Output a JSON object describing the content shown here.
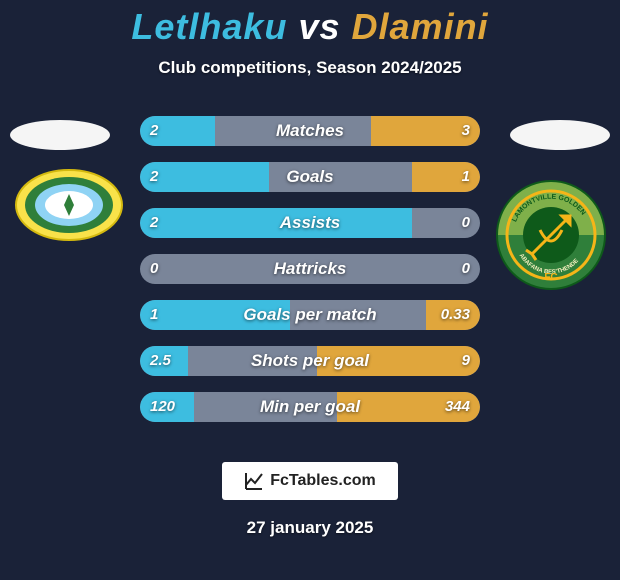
{
  "title": {
    "player1": "Letlhaku",
    "vs": "vs",
    "player2": "Dlamini",
    "color1": "#3dbde0",
    "colorVs": "#ffffff",
    "color2": "#e0a63c"
  },
  "subtitle": "Club competitions, Season 2024/2025",
  "colors": {
    "background": "#1a2238",
    "track": "#7a8599",
    "left": "#3dbde0",
    "right": "#e0a63c"
  },
  "track_width": 340,
  "rows": [
    {
      "label": "Matches",
      "left_val": "2",
      "right_val": "3",
      "left_pct": 22,
      "right_pct": 32
    },
    {
      "label": "Goals",
      "left_val": "2",
      "right_val": "1",
      "left_pct": 38,
      "right_pct": 20
    },
    {
      "label": "Assists",
      "left_val": "2",
      "right_val": "0",
      "left_pct": 80,
      "right_pct": 0
    },
    {
      "label": "Hattricks",
      "left_val": "0",
      "right_val": "0",
      "left_pct": 0,
      "right_pct": 0
    },
    {
      "label": "Goals per match",
      "left_val": "1",
      "right_val": "0.33",
      "left_pct": 44,
      "right_pct": 16
    },
    {
      "label": "Shots per goal",
      "left_val": "2.5",
      "right_val": "9",
      "left_pct": 14,
      "right_pct": 48
    },
    {
      "label": "Min per goal",
      "left_val": "120",
      "right_val": "344",
      "left_pct": 16,
      "right_pct": 42
    }
  ],
  "badge_left": {
    "outer": "#f9e24a",
    "mid": "#2f7f3a",
    "band": "#8fd3f4",
    "inner": "#ffffff"
  },
  "badge_right": {
    "outer_top": "#7fb04a",
    "outer_bottom": "#2f7f3a",
    "ring": "#f5b518",
    "center": "#0e5a1a",
    "arrow": "#f5b518",
    "text_top": "LAMONTVILLE GOLDEN",
    "text_bottom": "ABAFANA BES'THENDE",
    "fc": "FC"
  },
  "brand": "FcTables.com",
  "date": "27 january 2025"
}
